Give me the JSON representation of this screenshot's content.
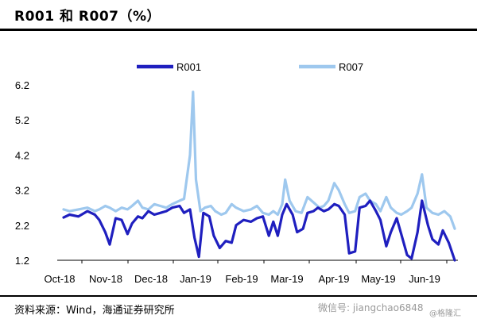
{
  "title": "R001 和 R007（%）",
  "source": "资料来源：Wind，海通证券研究所",
  "watermark": "微信号: jiangchao6848",
  "watermark2": "@格隆汇",
  "chart_data": {
    "type": "line",
    "xlabel": "",
    "ylabel": "",
    "ylim": [
      1.2,
      6.2
    ],
    "yticks": [
      1.2,
      2.2,
      3.2,
      4.2,
      5.2,
      6.2
    ],
    "ytick_labels": [
      "1.2",
      "2.2",
      "3.2",
      "4.2",
      "5.2",
      "6.2"
    ],
    "xlim": [
      "2018-10-08",
      "2019-06-28"
    ],
    "xticks": [
      {
        "label": "Oct-18",
        "date": "2018-10-01"
      },
      {
        "label": "Nov-18",
        "date": "2018-11-01"
      },
      {
        "label": "Dec-18",
        "date": "2018-12-01"
      },
      {
        "label": "Jan-19",
        "date": "2019-01-01"
      },
      {
        "label": "Feb-19",
        "date": "2019-02-01"
      },
      {
        "label": "Mar-19",
        "date": "2019-03-01"
      },
      {
        "label": "Apr-19",
        "date": "2019-04-01"
      },
      {
        "label": "May-19",
        "date": "2019-05-01"
      },
      {
        "label": "Jun-19",
        "date": "2019-06-01"
      }
    ],
    "legend_position": "top",
    "grid": false,
    "series": [
      {
        "name": "R001",
        "color": "#1f1fbf",
        "points": [
          [
            "2018-10-08",
            2.42
          ],
          [
            "2018-10-12",
            2.5
          ],
          [
            "2018-10-18",
            2.45
          ],
          [
            "2018-10-24",
            2.6
          ],
          [
            "2018-10-29",
            2.5
          ],
          [
            "2018-11-01",
            2.35
          ],
          [
            "2018-11-05",
            2.0
          ],
          [
            "2018-11-08",
            1.65
          ],
          [
            "2018-11-12",
            2.4
          ],
          [
            "2018-11-16",
            2.35
          ],
          [
            "2018-11-20",
            1.95
          ],
          [
            "2018-11-23",
            2.25
          ],
          [
            "2018-11-27",
            2.45
          ],
          [
            "2018-11-30",
            2.4
          ],
          [
            "2018-12-04",
            2.6
          ],
          [
            "2018-12-08",
            2.5
          ],
          [
            "2018-12-12",
            2.55
          ],
          [
            "2018-12-16",
            2.6
          ],
          [
            "2018-12-20",
            2.7
          ],
          [
            "2018-12-25",
            2.75
          ],
          [
            "2018-12-28",
            2.55
          ],
          [
            "2019-01-01",
            2.65
          ],
          [
            "2019-01-04",
            1.85
          ],
          [
            "2019-01-07",
            1.3
          ],
          [
            "2019-01-10",
            2.55
          ],
          [
            "2019-01-14",
            2.45
          ],
          [
            "2019-01-17",
            1.9
          ],
          [
            "2019-01-21",
            1.55
          ],
          [
            "2019-01-25",
            1.75
          ],
          [
            "2019-01-29",
            1.7
          ],
          [
            "2019-02-01",
            2.2
          ],
          [
            "2019-02-06",
            2.35
          ],
          [
            "2019-02-11",
            2.3
          ],
          [
            "2019-02-15",
            2.4
          ],
          [
            "2019-02-19",
            2.45
          ],
          [
            "2019-02-23",
            1.9
          ],
          [
            "2019-02-26",
            2.3
          ],
          [
            "2019-03-01",
            1.9
          ],
          [
            "2019-03-04",
            2.5
          ],
          [
            "2019-03-07",
            2.8
          ],
          [
            "2019-03-11",
            2.5
          ],
          [
            "2019-03-14",
            2.0
          ],
          [
            "2019-03-18",
            2.1
          ],
          [
            "2019-03-21",
            2.55
          ],
          [
            "2019-03-25",
            2.6
          ],
          [
            "2019-03-28",
            2.7
          ],
          [
            "2019-04-01",
            2.6
          ],
          [
            "2019-04-04",
            2.65
          ],
          [
            "2019-04-08",
            2.8
          ],
          [
            "2019-04-11",
            2.75
          ],
          [
            "2019-04-15",
            2.5
          ],
          [
            "2019-04-18",
            1.4
          ],
          [
            "2019-04-22",
            1.45
          ],
          [
            "2019-04-25",
            2.7
          ],
          [
            "2019-04-29",
            2.75
          ],
          [
            "2019-05-02",
            2.9
          ],
          [
            "2019-05-06",
            2.6
          ],
          [
            "2019-05-09",
            2.35
          ],
          [
            "2019-05-13",
            1.6
          ],
          [
            "2019-05-16",
            2.0
          ],
          [
            "2019-05-20",
            2.4
          ],
          [
            "2019-05-23",
            1.95
          ],
          [
            "2019-05-27",
            1.35
          ],
          [
            "2019-05-30",
            1.25
          ],
          [
            "2019-06-03",
            2.0
          ],
          [
            "2019-06-06",
            2.9
          ],
          [
            "2019-06-10",
            2.2
          ],
          [
            "2019-06-13",
            1.8
          ],
          [
            "2019-06-17",
            1.65
          ],
          [
            "2019-06-20",
            2.05
          ],
          [
            "2019-06-24",
            1.7
          ],
          [
            "2019-06-28",
            1.2
          ]
        ]
      },
      {
        "name": "R007",
        "color": "#9ec8ee",
        "points": [
          [
            "2018-10-08",
            2.65
          ],
          [
            "2018-10-12",
            2.6
          ],
          [
            "2018-10-18",
            2.65
          ],
          [
            "2018-10-24",
            2.7
          ],
          [
            "2018-10-29",
            2.6
          ],
          [
            "2018-11-01",
            2.65
          ],
          [
            "2018-11-05",
            2.75
          ],
          [
            "2018-11-08",
            2.7
          ],
          [
            "2018-11-12",
            2.6
          ],
          [
            "2018-11-16",
            2.7
          ],
          [
            "2018-11-20",
            2.65
          ],
          [
            "2018-11-23",
            2.75
          ],
          [
            "2018-11-27",
            2.9
          ],
          [
            "2018-11-30",
            2.7
          ],
          [
            "2018-12-04",
            2.65
          ],
          [
            "2018-12-08",
            2.8
          ],
          [
            "2018-12-12",
            2.75
          ],
          [
            "2018-12-16",
            2.7
          ],
          [
            "2018-12-20",
            2.8
          ],
          [
            "2018-12-25",
            2.9
          ],
          [
            "2018-12-28",
            2.95
          ],
          [
            "2019-01-01",
            4.2
          ],
          [
            "2019-01-03",
            6.0
          ],
          [
            "2019-01-05",
            3.5
          ],
          [
            "2019-01-08",
            2.6
          ],
          [
            "2019-01-11",
            2.7
          ],
          [
            "2019-01-15",
            2.75
          ],
          [
            "2019-01-18",
            2.6
          ],
          [
            "2019-01-22",
            2.5
          ],
          [
            "2019-01-25",
            2.55
          ],
          [
            "2019-01-29",
            2.8
          ],
          [
            "2019-02-01",
            2.7
          ],
          [
            "2019-02-06",
            2.6
          ],
          [
            "2019-02-11",
            2.65
          ],
          [
            "2019-02-15",
            2.75
          ],
          [
            "2019-02-19",
            2.55
          ],
          [
            "2019-02-23",
            2.5
          ],
          [
            "2019-02-26",
            2.6
          ],
          [
            "2019-03-01",
            2.5
          ],
          [
            "2019-03-04",
            2.8
          ],
          [
            "2019-03-06",
            3.5
          ],
          [
            "2019-03-09",
            2.9
          ],
          [
            "2019-03-13",
            2.6
          ],
          [
            "2019-03-17",
            2.55
          ],
          [
            "2019-03-21",
            3.0
          ],
          [
            "2019-03-25",
            2.85
          ],
          [
            "2019-03-29",
            2.7
          ],
          [
            "2019-04-01",
            2.75
          ],
          [
            "2019-04-04",
            2.9
          ],
          [
            "2019-04-08",
            3.4
          ],
          [
            "2019-04-11",
            3.2
          ],
          [
            "2019-04-15",
            2.8
          ],
          [
            "2019-04-18",
            2.55
          ],
          [
            "2019-04-22",
            2.6
          ],
          [
            "2019-04-25",
            3.0
          ],
          [
            "2019-04-29",
            3.1
          ],
          [
            "2019-05-02",
            2.9
          ],
          [
            "2019-05-06",
            2.8
          ],
          [
            "2019-05-09",
            2.6
          ],
          [
            "2019-05-13",
            3.0
          ],
          [
            "2019-05-16",
            2.7
          ],
          [
            "2019-05-20",
            2.55
          ],
          [
            "2019-05-23",
            2.5
          ],
          [
            "2019-05-27",
            2.6
          ],
          [
            "2019-05-30",
            2.7
          ],
          [
            "2019-06-03",
            3.1
          ],
          [
            "2019-06-06",
            3.65
          ],
          [
            "2019-06-09",
            2.7
          ],
          [
            "2019-06-13",
            2.55
          ],
          [
            "2019-06-17",
            2.5
          ],
          [
            "2019-06-21",
            2.6
          ],
          [
            "2019-06-25",
            2.45
          ],
          [
            "2019-06-28",
            2.1
          ]
        ]
      }
    ]
  }
}
